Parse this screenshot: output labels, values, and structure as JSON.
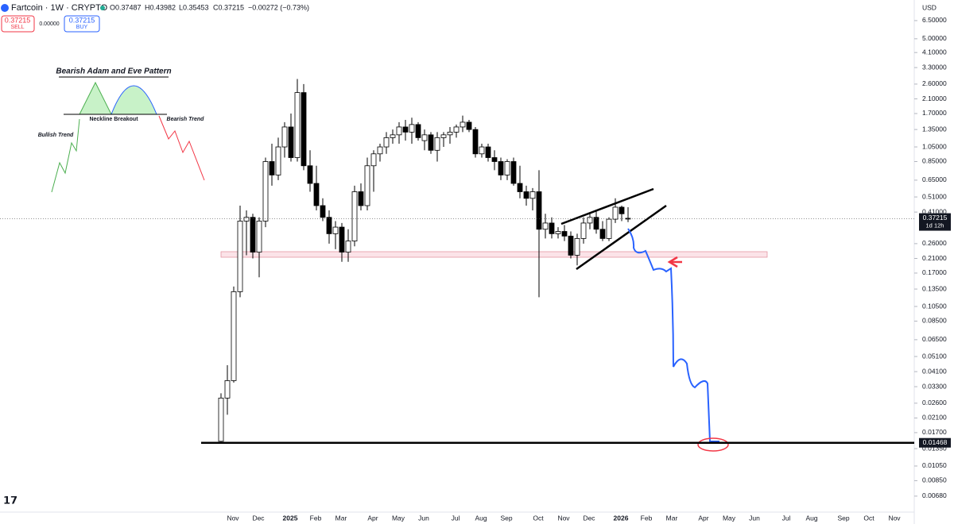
{
  "header": {
    "symbol": "Fartcoin · 1W · CRYPTO",
    "open": "O0.37487",
    "high": "H0.43982",
    "low": "L0.35453",
    "close": "C0.37215",
    "change": "−0.00272 (−0.73%)",
    "sell_price": "0.37215",
    "sell": "SELL",
    "spread": "0.00000",
    "buy_price": "0.37215",
    "buy": "BUY",
    "currency": "USD",
    "countdown": "1d 12h"
  },
  "annotation": {
    "title": "Bearish Adam and Eve Pattern",
    "neckline": "Neckline Breakout",
    "bullish": "Bullish Trend",
    "bearish": "Bearish Trend"
  },
  "chart_data": {
    "type": "candlestick",
    "log_scale": true,
    "ylim": [
      0.0054,
      8.75
    ],
    "yticks": [
      {
        "value": 6.5,
        "label": "6.50000"
      },
      {
        "value": 5,
        "label": "5.00000"
      },
      {
        "value": 4.1,
        "label": "4.10000"
      },
      {
        "value": 3.3,
        "label": "3.30000"
      },
      {
        "value": 2.6,
        "label": "2.60000"
      },
      {
        "value": 2.1,
        "label": "2.10000"
      },
      {
        "value": 1.7,
        "label": "1.70000"
      },
      {
        "value": 1.35,
        "label": "1.35000"
      },
      {
        "value": 1.05,
        "label": "1.05000"
      },
      {
        "value": 0.85,
        "label": "0.85000"
      },
      {
        "value": 0.65,
        "label": "0.65000"
      },
      {
        "value": 0.51,
        "label": "0.51000"
      },
      {
        "value": 0.41,
        "label": "0.41000"
      },
      {
        "value": 0.26,
        "label": "0.26000"
      },
      {
        "value": 0.21,
        "label": "0.21000"
      },
      {
        "value": 0.17,
        "label": "0.17000"
      },
      {
        "value": 0.135,
        "label": "0.13500"
      },
      {
        "value": 0.105,
        "label": "0.10500"
      },
      {
        "value": 0.085,
        "label": "0.08500"
      },
      {
        "value": 0.065,
        "label": "0.06500"
      },
      {
        "value": 0.051,
        "label": "0.05100"
      },
      {
        "value": 0.041,
        "label": "0.04100"
      },
      {
        "value": 0.033,
        "label": "0.03300"
      },
      {
        "value": 0.026,
        "label": "0.02600"
      },
      {
        "value": 0.021,
        "label": "0.02100"
      },
      {
        "value": 0.017,
        "label": "0.01700"
      },
      {
        "value": 0.0135,
        "label": "0.01350"
      },
      {
        "value": 0.0105,
        "label": "0.01050"
      },
      {
        "value": 0.0085,
        "label": "0.00850"
      },
      {
        "value": 0.0068,
        "label": "0.00680"
      }
    ],
    "x_axis_labels": [
      "Nov",
      "Dec",
      "2025",
      "Feb",
      "Mar",
      "Apr",
      "May",
      "Jun",
      "Jul",
      "Aug",
      "Sep",
      "Oct",
      "Nov",
      "Dec",
      "2026",
      "Feb",
      "Mar",
      "Apr",
      "May",
      "Jun",
      "Jul",
      "Aug",
      "Sep",
      "Oct",
      "Nov"
    ],
    "last_price": {
      "value": 0.37215,
      "label": "0.37215"
    },
    "support": {
      "value": 0.01468,
      "label": "0.01468"
    },
    "open": [
      0.015,
      0.028,
      0.036,
      0.13,
      0.36,
      0.38,
      0.23,
      0.36,
      0.85,
      0.7,
      1.05,
      1.4,
      0.9,
      2.3,
      0.8,
      0.62,
      0.45,
      0.38,
      0.3,
      0.33,
      0.23,
      0.27,
      0.55,
      0.45,
      0.8,
      0.95,
      1.05,
      1.2,
      1.25,
      1.4,
      1.3,
      1.45,
      1.15,
      1.25,
      1.0,
      1.2,
      1.25,
      1.3,
      1.4,
      1.5,
      1.35,
      0.95,
      1.05,
      0.9,
      0.85,
      0.7,
      0.85,
      0.62,
      0.55,
      0.5,
      0.55,
      0.32,
      0.35,
      0.3,
      0.31,
      0.29,
      0.22,
      0.28,
      0.35,
      0.38,
      0.32,
      0.28,
      0.37,
      0.44,
      0.37487
    ],
    "high": [
      0.03,
      0.045,
      0.14,
      0.45,
      0.42,
      0.4,
      0.38,
      0.9,
      1.1,
      1.2,
      1.5,
      1.7,
      2.8,
      2.6,
      1.0,
      0.8,
      0.5,
      0.42,
      0.36,
      0.35,
      0.32,
      0.6,
      0.62,
      0.9,
      1.0,
      1.1,
      1.3,
      1.35,
      1.5,
      1.55,
      1.6,
      1.5,
      1.35,
      1.3,
      1.3,
      1.3,
      1.4,
      1.45,
      1.65,
      1.55,
      1.4,
      1.1,
      1.1,
      1.0,
      0.9,
      0.88,
      0.9,
      0.8,
      0.6,
      0.58,
      0.75,
      0.4,
      0.38,
      0.33,
      0.34,
      0.31,
      0.3,
      0.38,
      0.4,
      0.42,
      0.36,
      0.38,
      0.5,
      0.45,
      0.43982
    ],
    "low": [
      0.0145,
      0.022,
      0.035,
      0.12,
      0.22,
      0.21,
      0.16,
      0.33,
      0.6,
      0.65,
      0.9,
      0.85,
      0.85,
      0.75,
      0.55,
      0.42,
      0.36,
      0.26,
      0.24,
      0.2,
      0.2,
      0.25,
      0.42,
      0.42,
      0.55,
      0.85,
      0.95,
      1.1,
      1.1,
      1.15,
      1.1,
      1.15,
      1.0,
      0.95,
      0.85,
      1.05,
      1.1,
      1.2,
      1.3,
      1.3,
      0.9,
      0.9,
      0.85,
      0.75,
      0.65,
      0.65,
      0.6,
      0.5,
      0.45,
      0.42,
      0.12,
      0.28,
      0.28,
      0.28,
      0.27,
      0.21,
      0.19,
      0.26,
      0.32,
      0.3,
      0.27,
      0.27,
      0.35,
      0.36,
      0.35453
    ],
    "close": [
      0.028,
      0.036,
      0.13,
      0.36,
      0.38,
      0.23,
      0.36,
      0.85,
      0.7,
      1.05,
      1.4,
      0.9,
      2.3,
      0.8,
      0.62,
      0.45,
      0.38,
      0.3,
      0.33,
      0.23,
      0.27,
      0.55,
      0.45,
      0.8,
      0.95,
      1.05,
      1.2,
      1.25,
      1.4,
      1.3,
      1.45,
      1.2,
      1.25,
      1.0,
      1.2,
      1.25,
      1.3,
      1.4,
      1.5,
      1.35,
      0.95,
      1.05,
      0.9,
      0.85,
      0.7,
      0.85,
      0.62,
      0.55,
      0.5,
      0.55,
      0.32,
      0.35,
      0.3,
      0.31,
      0.29,
      0.22,
      0.28,
      0.35,
      0.38,
      0.32,
      0.28,
      0.37,
      0.44,
      0.4,
      0.37215
    ]
  }
}
